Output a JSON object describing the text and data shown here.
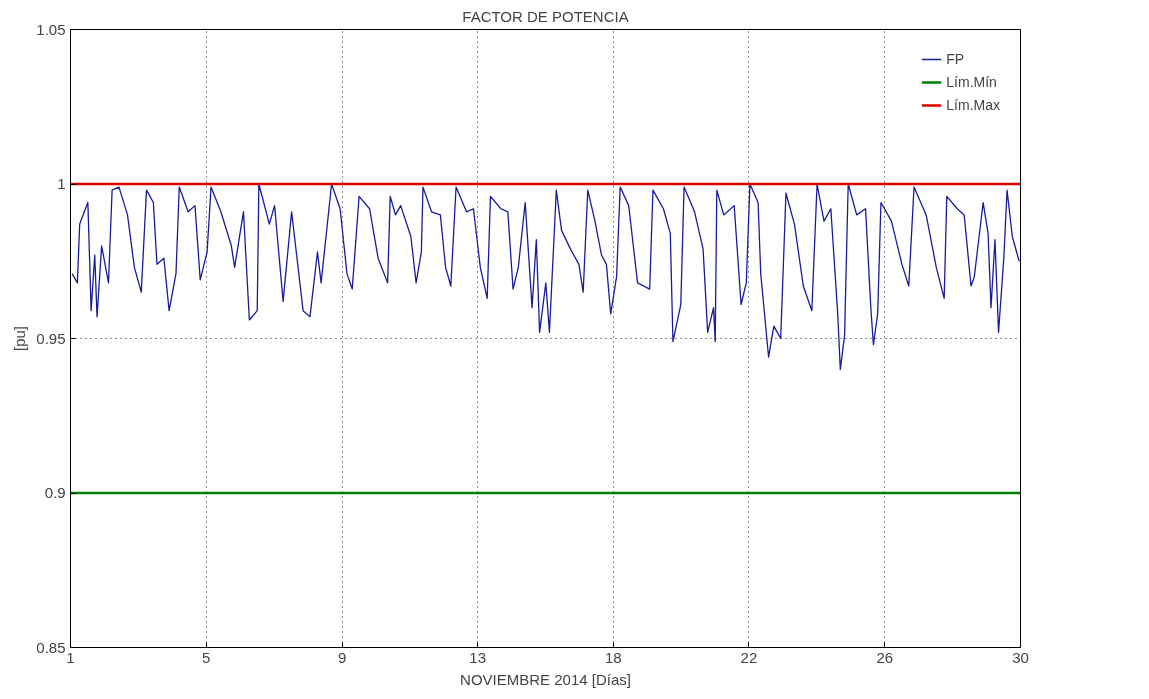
{
  "chart_data": {
    "type": "line",
    "title": "FACTOR DE POTENCIA",
    "xlabel": "NOVIEMBRE 2014 [Días]",
    "ylabel": "[pu]",
    "xlim": [
      1,
      30
    ],
    "ylim": [
      0.85,
      1.05
    ],
    "xticks": [
      {
        "value": 1,
        "label": "1"
      },
      {
        "value": 5.14,
        "label": "5"
      },
      {
        "value": 9.29,
        "label": "9"
      },
      {
        "value": 13.43,
        "label": "13"
      },
      {
        "value": 17.57,
        "label": "18"
      },
      {
        "value": 21.71,
        "label": "22"
      },
      {
        "value": 25.86,
        "label": "26"
      },
      {
        "value": 30,
        "label": "30"
      }
    ],
    "yticks": [
      0.85,
      0.9,
      0.95,
      1,
      1.05
    ],
    "grid": true,
    "legend": "top right",
    "line_style": "solid",
    "series": [
      {
        "name": "FP",
        "color": "#1a1a9c",
        "x": [
          1.05,
          1.21,
          1.28,
          1.42,
          1.53,
          1.63,
          1.74,
          1.81,
          1.95,
          2.16,
          2.27,
          2.48,
          2.74,
          2.95,
          3.16,
          3.32,
          3.53,
          3.64,
          3.85,
          4.01,
          4.22,
          4.32,
          4.59,
          4.8,
          4.96,
          5.17,
          5.29,
          5.59,
          5.91,
          6.01,
          6.28,
          6.46,
          6.7,
          6.75,
          7.07,
          7.23,
          7.49,
          7.75,
          8.1,
          8.31,
          8.54,
          8.65,
          8.97,
          9.23,
          9.44,
          9.6,
          9.81,
          10.13,
          10.39,
          10.68,
          10.76,
          10.92,
          11.08,
          11.39,
          11.55,
          11.71,
          11.76,
          12.02,
          12.29,
          12.45,
          12.61,
          12.77,
          13.09,
          13.3,
          13.51,
          13.72,
          13.82,
          14.14,
          14.35,
          14.51,
          14.67,
          14.88,
          15.09,
          15.22,
          15.32,
          15.51,
          15.62,
          15.83,
          15.99,
          16.26,
          16.52,
          16.65,
          16.79,
          17.01,
          17.21,
          17.36,
          17.49,
          17.67,
          17.78,
          18.04,
          18.31,
          18.68,
          18.78,
          19.1,
          19.31,
          19.39,
          19.63,
          19.73,
          20.05,
          20.31,
          20.45,
          20.63,
          20.68,
          20.73,
          20.94,
          21.26,
          21.47,
          21.63,
          21.74,
          21.99,
          22.07,
          22.31,
          22.47,
          22.68,
          22.84,
          23.1,
          23.37,
          23.63,
          23.79,
          24.0,
          24.21,
          24.42,
          24.5,
          24.63,
          24.74,
          25.0,
          25.27,
          25.43,
          25.51,
          25.64,
          25.74,
          26.06,
          26.38,
          26.59,
          26.75,
          27.12,
          27.43,
          27.67,
          27.75,
          28.07,
          28.28,
          28.49,
          28.59,
          28.86,
          29.01,
          29.1,
          29.22,
          29.33,
          29.49,
          29.59,
          29.75,
          29.96
        ],
        "values": [
          0.971,
          0.968,
          0.987,
          0.991,
          0.994,
          0.959,
          0.977,
          0.957,
          0.98,
          0.968,
          0.998,
          0.999,
          0.99,
          0.973,
          0.965,
          0.998,
          0.994,
          0.974,
          0.976,
          0.959,
          0.971,
          0.999,
          0.991,
          0.993,
          0.969,
          0.978,
          0.999,
          0.991,
          0.98,
          0.973,
          0.991,
          0.956,
          0.959,
          1.0,
          0.987,
          0.993,
          0.962,
          0.991,
          0.959,
          0.957,
          0.978,
          0.968,
          1.0,
          0.992,
          0.971,
          0.966,
          0.996,
          0.992,
          0.976,
          0.968,
          0.996,
          0.99,
          0.993,
          0.983,
          0.968,
          0.978,
          0.999,
          0.991,
          0.99,
          0.973,
          0.967,
          0.999,
          0.991,
          0.992,
          0.973,
          0.963,
          0.996,
          0.992,
          0.991,
          0.966,
          0.973,
          0.994,
          0.96,
          0.982,
          0.952,
          0.968,
          0.952,
          0.998,
          0.985,
          0.979,
          0.974,
          0.965,
          0.998,
          0.988,
          0.977,
          0.974,
          0.958,
          0.97,
          0.999,
          0.993,
          0.968,
          0.966,
          0.998,
          0.992,
          0.984,
          0.949,
          0.961,
          0.999,
          0.991,
          0.979,
          0.952,
          0.96,
          0.949,
          0.998,
          0.99,
          0.993,
          0.961,
          0.968,
          1.0,
          0.994,
          0.971,
          0.944,
          0.954,
          0.95,
          0.997,
          0.987,
          0.967,
          0.959,
          1.0,
          0.988,
          0.992,
          0.958,
          0.94,
          0.951,
          1.0,
          0.99,
          0.992,
          0.96,
          0.948,
          0.958,
          0.994,
          0.988,
          0.974,
          0.967,
          0.999,
          0.99,
          0.973,
          0.963,
          0.996,
          0.992,
          0.99,
          0.967,
          0.97,
          0.994,
          0.984,
          0.96,
          0.982,
          0.952,
          0.976,
          0.998,
          0.983,
          0.975
        ]
      },
      {
        "name": "Lím.Mín",
        "color": "#008000",
        "x": [
          1,
          30
        ],
        "values": [
          0.9,
          0.9
        ]
      },
      {
        "name": "Lím.Max",
        "color": "#e00000",
        "x": [
          1,
          30
        ],
        "values": [
          1,
          1
        ]
      }
    ]
  }
}
